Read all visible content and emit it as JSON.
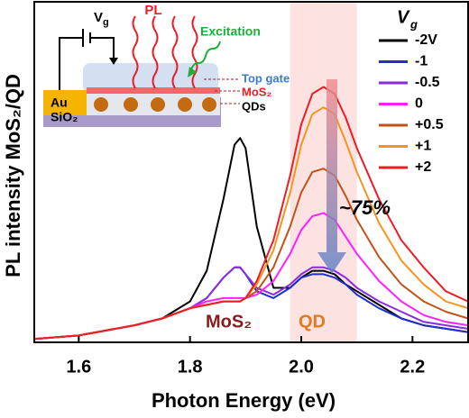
{
  "chart_data": {
    "type": "line",
    "x_label": "Photon Energy (eV)",
    "y_label": "PL intensity MoS₂/QD",
    "xlim": [
      1.52,
      2.3
    ],
    "xticks": [
      1.6,
      1.8,
      {
        "value": 2,
        "label": "2.0"
      },
      2.2
    ],
    "ylim": [
      0,
      1
    ],
    "highlight_x": [
      1.98,
      2.1
    ],
    "legend_title": "V",
    "legend_title_sub": "g",
    "x": [
      1.52,
      1.6,
      1.7,
      1.75,
      1.8,
      1.83,
      1.86,
      1.88,
      1.89,
      1.9,
      1.92,
      1.95,
      1.98,
      2.0,
      2.02,
      2.04,
      2.06,
      2.08,
      2.1,
      2.14,
      2.18,
      2.22,
      2.26,
      2.3
    ],
    "series": [
      {
        "name": "-2V",
        "color": "#000000",
        "values": [
          0.01,
          0.02,
          0.05,
          0.07,
          0.12,
          0.21,
          0.42,
          0.58,
          0.6,
          0.57,
          0.34,
          0.16,
          0.16,
          0.19,
          0.21,
          0.21,
          0.2,
          0.17,
          0.15,
          0.11,
          0.07,
          0.05,
          0.04,
          0.03
        ]
      },
      {
        "name": "-1",
        "color": "#1f2fd0",
        "values": [
          0.01,
          0.02,
          0.05,
          0.07,
          0.1,
          0.13,
          0.19,
          0.22,
          0.22,
          0.2,
          0.15,
          0.13,
          0.16,
          0.19,
          0.2,
          0.2,
          0.19,
          0.17,
          0.14,
          0.1,
          0.07,
          0.05,
          0.04,
          0.03
        ]
      },
      {
        "name": "-0.5",
        "color": "#8a2be2",
        "values": [
          0.01,
          0.02,
          0.05,
          0.07,
          0.1,
          0.13,
          0.19,
          0.22,
          0.22,
          0.2,
          0.16,
          0.14,
          0.17,
          0.2,
          0.22,
          0.22,
          0.21,
          0.19,
          0.16,
          0.12,
          0.09,
          0.06,
          0.05,
          0.04
        ]
      },
      {
        "name": "0",
        "color": "#ff1fff",
        "values": [
          0.01,
          0.02,
          0.05,
          0.07,
          0.1,
          0.12,
          0.13,
          0.13,
          0.13,
          0.13,
          0.14,
          0.18,
          0.26,
          0.33,
          0.37,
          0.38,
          0.36,
          0.31,
          0.26,
          0.18,
          0.12,
          0.08,
          0.06,
          0.05
        ]
      },
      {
        "name": "+0.5",
        "color": "#c0521a",
        "values": [
          0.01,
          0.02,
          0.05,
          0.07,
          0.1,
          0.11,
          0.12,
          0.12,
          0.12,
          0.13,
          0.15,
          0.22,
          0.34,
          0.44,
          0.5,
          0.51,
          0.49,
          0.43,
          0.36,
          0.25,
          0.17,
          0.12,
          0.09,
          0.07
        ]
      },
      {
        "name": "+1",
        "color": "#f7941d",
        "values": [
          0.01,
          0.02,
          0.05,
          0.07,
          0.1,
          0.11,
          0.12,
          0.12,
          0.12,
          0.13,
          0.17,
          0.27,
          0.44,
          0.58,
          0.67,
          0.69,
          0.67,
          0.59,
          0.5,
          0.35,
          0.24,
          0.17,
          0.12,
          0.1
        ]
      },
      {
        "name": "+2",
        "color": "#ee1c25",
        "values": [
          0.01,
          0.02,
          0.05,
          0.07,
          0.1,
          0.11,
          0.12,
          0.12,
          0.12,
          0.13,
          0.18,
          0.3,
          0.49,
          0.64,
          0.73,
          0.75,
          0.73,
          0.66,
          0.57,
          0.42,
          0.3,
          0.22,
          0.15,
          0.12
        ]
      }
    ],
    "annotations": {
      "percent": "~75%",
      "mos2": "MoS₂",
      "qd": "QD"
    },
    "inset": {
      "v": "V",
      "g": "g",
      "pl": "PL",
      "excitation": "Excitation",
      "top_gate": "Top gate",
      "mos2": "MoS₂",
      "qds": "QDs",
      "au": "Au",
      "sio2": "SiO₂"
    }
  }
}
